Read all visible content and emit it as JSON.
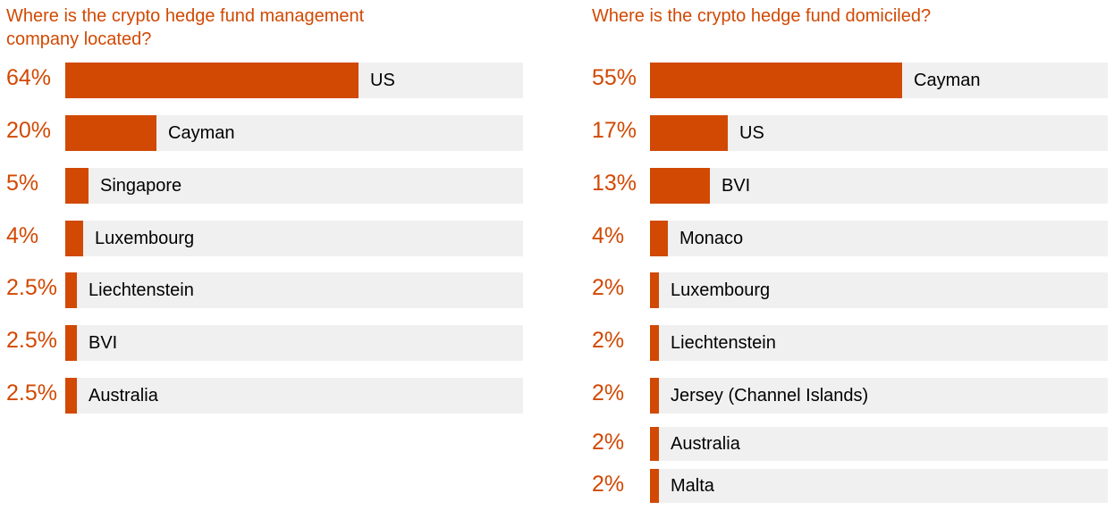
{
  "colors": {
    "accent": "#d14903",
    "track": "#f0f0f0",
    "label": "#000000"
  },
  "chart_data": [
    {
      "type": "bar",
      "orientation": "horizontal",
      "title": "Where is the crypto hedge fund management company located?",
      "categories": [
        "US",
        "Cayman",
        "Singapore",
        "Luxembourg",
        "Liechtenstein",
        "BVI",
        "Australia"
      ],
      "values": [
        64,
        20,
        5,
        4,
        2.5,
        2.5,
        2.5
      ],
      "value_labels": [
        "64%",
        "20%",
        "5%",
        "4%",
        "2.5%",
        "2.5%",
        "2.5%"
      ],
      "xlim": [
        0,
        100
      ],
      "unit": "%"
    },
    {
      "type": "bar",
      "orientation": "horizontal",
      "title": "Where is the crypto hedge fund domiciled?",
      "categories": [
        "Cayman",
        "US",
        "BVI",
        "Monaco",
        "Luxembourg",
        "Liechtenstein",
        "Jersey (Channel Islands)",
        "Australia",
        "Malta"
      ],
      "values": [
        55,
        17,
        13,
        4,
        2,
        2,
        2,
        2,
        2
      ],
      "value_labels": [
        "55%",
        "17%",
        "13%",
        "4%",
        "2%",
        "2%",
        "2%",
        "2%",
        "2%"
      ],
      "xlim": [
        0,
        100
      ],
      "unit": "%"
    }
  ]
}
